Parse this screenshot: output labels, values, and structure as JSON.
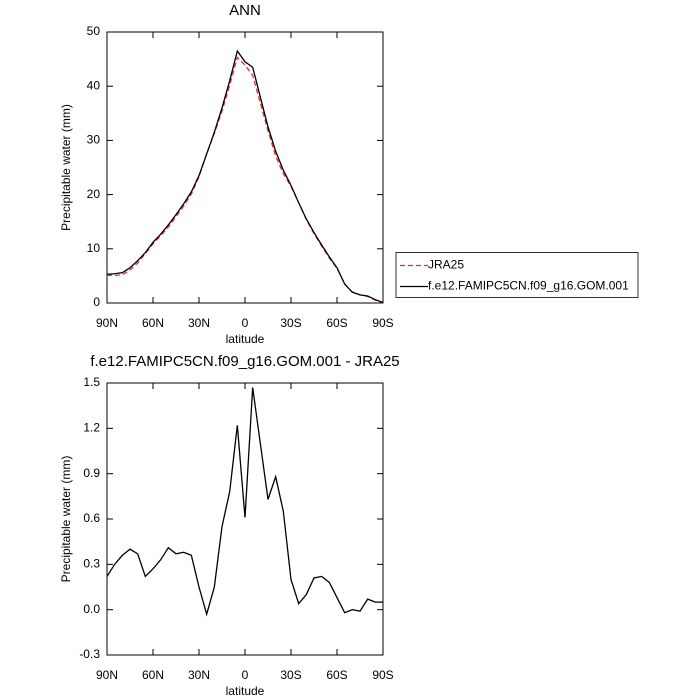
{
  "chart_data": [
    {
      "type": "line",
      "title": "ANN",
      "ylabel": "Precipitable water (mm)",
      "xlabel": "latitude",
      "x": [
        90,
        85,
        80,
        75,
        70,
        65,
        60,
        55,
        50,
        45,
        40,
        35,
        30,
        25,
        20,
        15,
        10,
        5,
        0,
        -5,
        -10,
        -15,
        -20,
        -25,
        -30,
        -35,
        -40,
        -45,
        -50,
        -55,
        -60,
        -65,
        -70,
        -75,
        -80,
        -85,
        -90
      ],
      "series": [
        {
          "name": "JRA25",
          "color": "#e0302a",
          "dashed": true,
          "values": [
            5.1,
            5.1,
            5.2,
            6.1,
            7.4,
            9.1,
            10.9,
            12.4,
            14.0,
            15.9,
            17.9,
            20.1,
            23.3,
            27.5,
            31.3,
            35.4,
            40.2,
            45.3,
            43.9,
            42.0,
            36.9,
            31.8,
            27.1,
            23.9,
            21.5,
            18.5,
            15.4,
            12.8,
            10.5,
            8.3,
            6.4,
            3.5,
            2.0,
            1.5,
            1.2,
            0.55,
            0.05
          ]
        },
        {
          "name": "f.e12.FAMIPC5CN.f09_g16.GOM.001",
          "color": "#000000",
          "dashed": false,
          "values": [
            5.3,
            5.4,
            5.6,
            6.5,
            7.8,
            9.3,
            11.2,
            12.7,
            14.4,
            16.3,
            18.3,
            20.5,
            23.5,
            27.5,
            31.5,
            36,
            41,
            46.5,
            44.5,
            43.5,
            38,
            32.5,
            28,
            24.5,
            21.7,
            18.5,
            15.5,
            13,
            10.7,
            8.5,
            6.5,
            3.5,
            2,
            1.5,
            1.3,
            0.6,
            0.1
          ]
        }
      ],
      "xlim": [
        90,
        -90
      ],
      "xticks": [
        {
          "value": 90,
          "label": "90N"
        },
        {
          "value": 60,
          "label": "60N"
        },
        {
          "value": 30,
          "label": "30N"
        },
        0,
        {
          "value": -30,
          "label": "30S"
        },
        {
          "value": -60,
          "label": "60S"
        },
        {
          "value": -90,
          "label": "90S"
        }
      ],
      "ylim": [
        0,
        50
      ],
      "yticks": [
        0,
        10,
        20,
        30,
        40,
        50
      ],
      "legend": "right"
    },
    {
      "type": "line",
      "title": "f.e12.FAMIPC5CN.f09_g16.GOM.001 - JRA25",
      "ylabel": "Precipitable water (mm)",
      "xlabel": "latitude",
      "x": [
        90,
        85,
        80,
        75,
        70,
        65,
        60,
        55,
        50,
        45,
        40,
        35,
        30,
        25,
        20,
        15,
        10,
        5,
        0,
        -5,
        -10,
        -15,
        -20,
        -25,
        -30,
        -35,
        -40,
        -45,
        -50,
        -55,
        -60,
        -65,
        -70,
        -75,
        -80,
        -85,
        -90
      ],
      "color": "#000000",
      "values": [
        0.22,
        0.3,
        0.36,
        0.4,
        0.37,
        0.22,
        0.27,
        0.33,
        0.41,
        0.37,
        0.38,
        0.36,
        0.15,
        -0.03,
        0.15,
        0.55,
        0.78,
        1.22,
        0.61,
        1.47,
        1.1,
        0.73,
        0.88,
        0.65,
        0.2,
        0.04,
        0.1,
        0.21,
        0.22,
        0.18,
        0.08,
        -0.02,
        0,
        -0.01,
        0.07,
        0.05,
        0.05
      ],
      "xlim": [
        90,
        -90
      ],
      "xticks": [
        {
          "value": 90,
          "label": "90N"
        },
        {
          "value": 60,
          "label": "60N"
        },
        {
          "value": 30,
          "label": "30N"
        },
        0,
        {
          "value": -30,
          "label": "30S"
        },
        {
          "value": -60,
          "label": "60S"
        },
        {
          "value": -90,
          "label": "90S"
        }
      ],
      "ylim": [
        -0.3,
        1.5
      ],
      "yticks": [
        -0.3,
        {
          "value": 0,
          "label": "0.0"
        },
        0.3,
        0.6,
        0.9,
        1.2,
        1.5
      ]
    }
  ]
}
